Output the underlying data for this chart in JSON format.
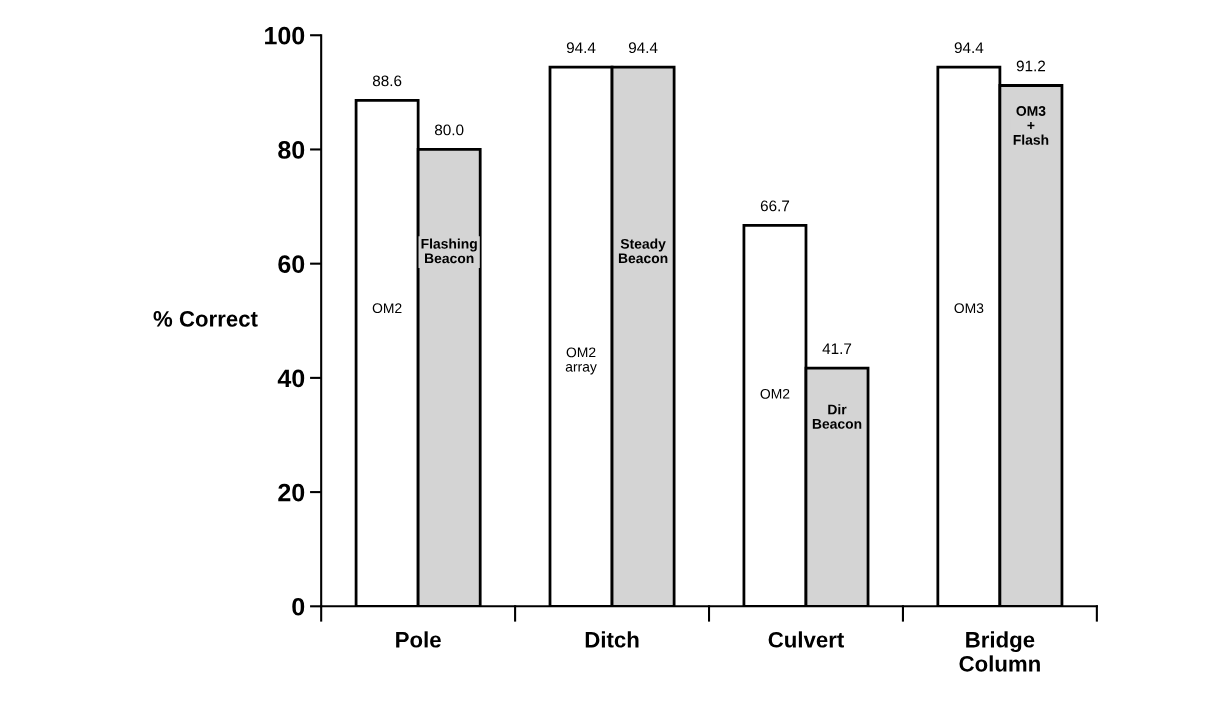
{
  "chart_data": {
    "type": "bar",
    "ylabel": "% Correct",
    "categories": [
      "Pole",
      "Ditch",
      "Culvert",
      "Bridge\nColumn"
    ],
    "series": [
      {
        "color": "#ffffff",
        "values": [
          88.6,
          94.4,
          66.7,
          94.4
        ]
      },
      {
        "color": "#d4d4d4",
        "values": [
          80.0,
          94.4,
          41.7,
          91.2
        ]
      }
    ],
    "value_labels": [
      [
        "88.6",
        "94.4",
        "66.7",
        "94.4"
      ],
      [
        "80.0",
        "94.4",
        "41.7",
        "91.2"
      ]
    ],
    "ylim": [
      0,
      100
    ],
    "yticks": [
      0,
      20,
      40,
      60,
      80,
      100
    ],
    "grid": false,
    "legend": false,
    "annotations": [
      {
        "text": "OM2",
        "x": "Pole",
        "y": 52
      },
      {
        "text": "Flashing\nBeacon",
        "x": "Pole",
        "y": 62
      },
      {
        "text": "OM2\narray",
        "x": "Ditch",
        "y": 43
      },
      {
        "text": "Steady\nBeacon",
        "x": "Ditch",
        "y": 62
      },
      {
        "text": "OM2",
        "x": "Culvert",
        "y": 37
      },
      {
        "text": "Dir\nBeacon",
        "x": "Culvert",
        "y": 33
      },
      {
        "text": "OM3",
        "x": "Bridge\nColumn",
        "y": 52
      },
      {
        "text": "OM3\n+\nFlash",
        "x": "Bridge\nColumn",
        "y": 84
      }
    ]
  }
}
